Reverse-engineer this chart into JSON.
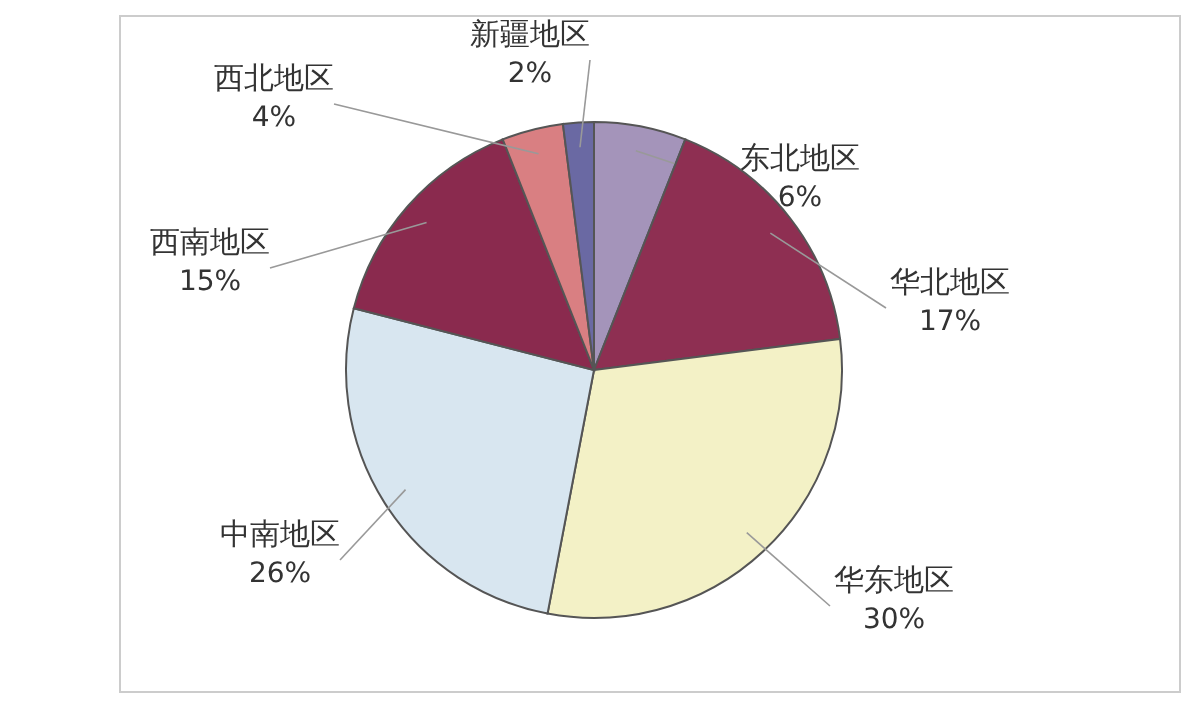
{
  "chart_data": {
    "type": "pie",
    "categories": [
      "东北地区",
      "华北地区",
      "华东地区",
      "中南地区",
      "西南地区",
      "西北地区",
      "新疆地区"
    ],
    "values": [
      6,
      17,
      30,
      26,
      15,
      4,
      2
    ],
    "value_labels": [
      "6%",
      "17%",
      "30%",
      "26%",
      "15%",
      "4%",
      "2%"
    ],
    "colors": [
      "#a494ba",
      "#8e2f52",
      "#f3f1c6",
      "#d8e6f0",
      "#8a2a4e",
      "#d97f82",
      "#6a69a3"
    ]
  }
}
